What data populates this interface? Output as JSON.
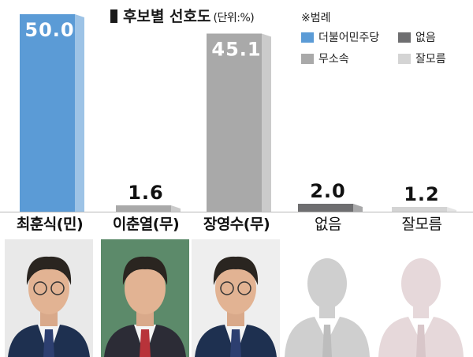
{
  "chart_data": {
    "type": "bar",
    "title": "후보별 선호도",
    "unit": "(단위:%)",
    "categories": [
      "최훈식(민)",
      "이춘열(무)",
      "장영수(무)",
      "없음",
      "잘모름"
    ],
    "values": [
      50.0,
      1.6,
      45.1,
      2.0,
      1.2
    ],
    "value_labels": [
      "50.0",
      "1.6",
      "45.1",
      "2.0",
      "1.2"
    ],
    "bar_colors": [
      "#5b9bd6",
      "#a9a9a9",
      "#a9a9a9",
      "#6e6e70",
      "#d4d4d4"
    ],
    "ylim": [
      0,
      50
    ],
    "grid": false,
    "legend_position": "top-right"
  },
  "legend": {
    "title": "※범례",
    "items": [
      {
        "label": "더불어민주당",
        "color": "#5b9bd6"
      },
      {
        "label": "없음",
        "color": "#6e6e70"
      },
      {
        "label": "무소속",
        "color": "#a9a9a9"
      },
      {
        "label": "잘모름",
        "color": "#d4d4d4"
      }
    ]
  },
  "photos": [
    {
      "icon": "candidate-photo",
      "bg": "#e9e9e9"
    },
    {
      "icon": "candidate-photo",
      "bg": "#5c8a6a"
    },
    {
      "icon": "candidate-photo",
      "bg": "#eeeeee"
    },
    {
      "icon": "silhouette-icon",
      "bg": "#ffffff"
    },
    {
      "icon": "silhouette-icon",
      "bg": "#ffffff"
    }
  ]
}
